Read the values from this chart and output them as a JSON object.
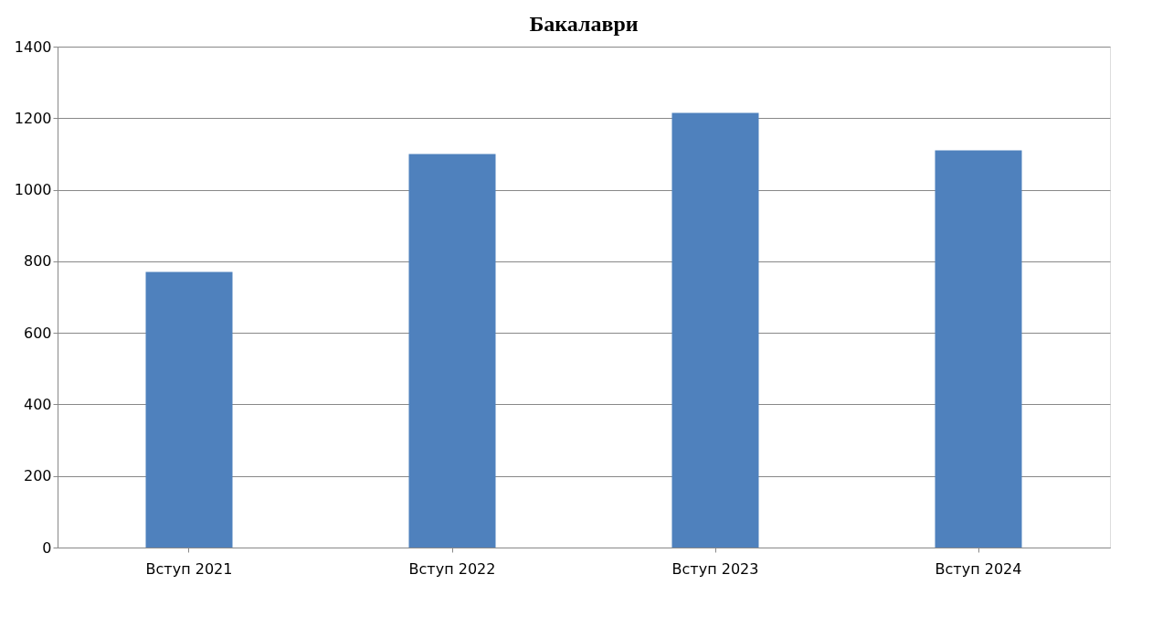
{
  "chart_data": {
    "type": "bar",
    "title": "Бакалаври",
    "categories": [
      "Вступ 2021",
      "Вступ 2022",
      "Вступ 2023",
      "Вступ 2024"
    ],
    "values": [
      770,
      1100,
      1215,
      1110
    ],
    "color": "#4f81bd",
    "ylim": [
      0,
      1400
    ],
    "yticks": [
      0,
      200,
      400,
      600,
      800,
      1000,
      1200,
      1400
    ],
    "grid": "y"
  }
}
